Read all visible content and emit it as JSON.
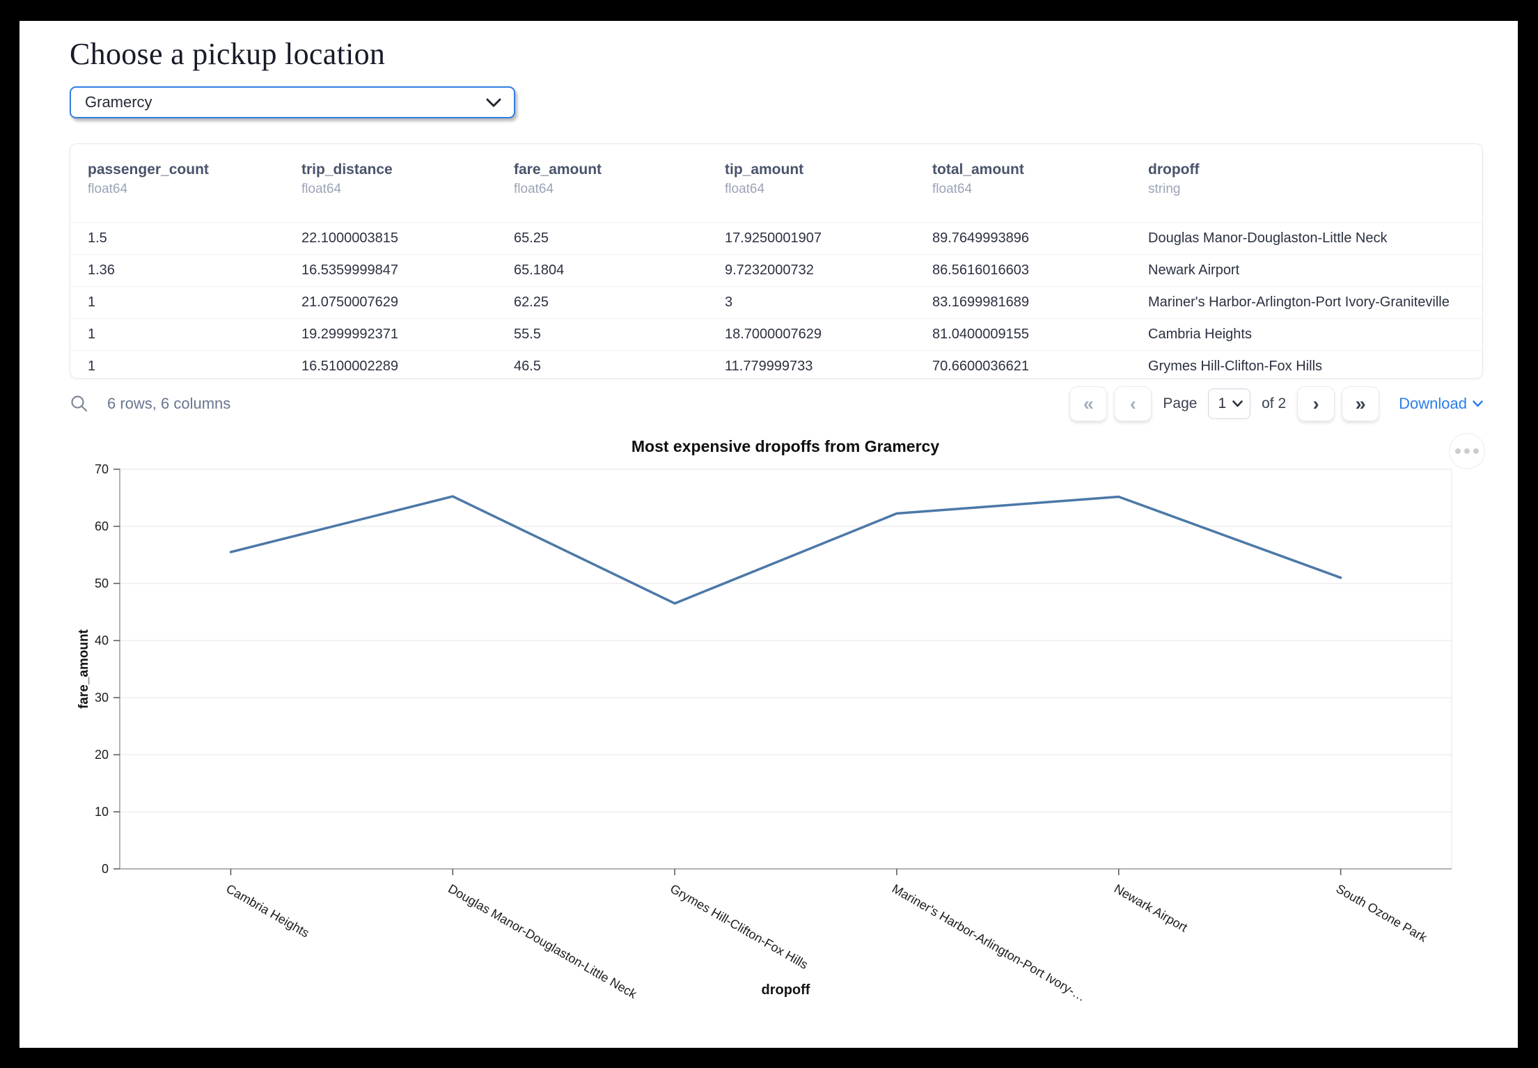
{
  "header": {
    "title": "Choose a pickup location"
  },
  "pickup_select": {
    "value": "Gramercy"
  },
  "dataframe": {
    "columns": [
      {
        "name": "passenger_count",
        "dtype": "float64"
      },
      {
        "name": "trip_distance",
        "dtype": "float64"
      },
      {
        "name": "fare_amount",
        "dtype": "float64"
      },
      {
        "name": "tip_amount",
        "dtype": "float64"
      },
      {
        "name": "total_amount",
        "dtype": "float64"
      },
      {
        "name": "dropoff",
        "dtype": "string"
      }
    ],
    "rows": [
      [
        "1.5",
        "22.1000003815",
        "65.25",
        "17.9250001907",
        "89.7649993896",
        "Douglas Manor-Douglaston-Little Neck"
      ],
      [
        "1.36",
        "16.5359999847",
        "65.1804",
        "9.7232000732",
        "86.5616016603",
        "Newark Airport"
      ],
      [
        "1",
        "21.0750007629",
        "62.25",
        "3",
        "83.1699981689",
        "Mariner's Harbor-Arlington-Port Ivory-Graniteville"
      ],
      [
        "1",
        "19.2999992371",
        "55.5",
        "18.7000007629",
        "81.0400009155",
        "Cambria Heights"
      ],
      [
        "1",
        "16.5100002289",
        "46.5",
        "11.779999733",
        "70.6600036621",
        "Grymes Hill-Clifton-Fox Hills"
      ]
    ]
  },
  "table_footer": {
    "summary": "6 rows, 6 columns",
    "first_icon": "«",
    "prev_icon": "‹",
    "page_label": "Page",
    "current_page": "1",
    "of_label": "of 2",
    "next_icon": "›",
    "last_icon": "»",
    "download_label": "Download"
  },
  "chart_data": {
    "type": "line",
    "title": "Most expensive dropoffs from Gramercy",
    "xlabel": "dropoff",
    "ylabel": "fare_amount",
    "categories": [
      "Cambria Heights",
      "Douglas Manor-Douglaston-Little Neck",
      "Grymes Hill-Clifton-Fox Hills",
      "Mariner's Harbor-Arlington-Port Ivory-…",
      "Newark Airport",
      "South Ozone Park"
    ],
    "values": [
      55.5,
      65.25,
      46.5,
      62.25,
      65.1804,
      51
    ],
    "ylim": [
      0,
      70
    ],
    "yticks": [
      0,
      10,
      20,
      30,
      40,
      50,
      60,
      70
    ],
    "grid": true,
    "legend": false,
    "line_color": "#4c78a8"
  },
  "colors": {
    "accent_blue": "#2b7de9",
    "select_border": "#2e7fe0",
    "line": "#4c78a8"
  }
}
